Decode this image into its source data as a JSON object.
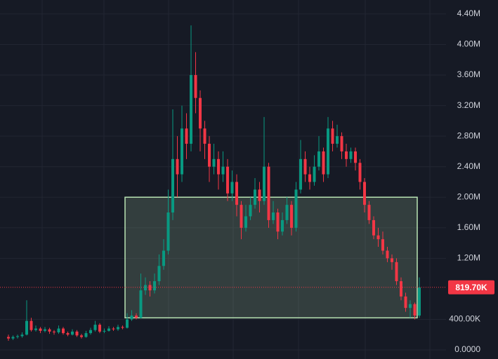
{
  "chart_data": {
    "type": "candlestick",
    "up_color": "#089981",
    "down_color": "#f23645",
    "ylim": [
      -119000,
      4583000
    ],
    "yticks": [
      {
        "value": 0,
        "label": "0.0000"
      },
      {
        "value": 400000,
        "label": "400.00K"
      },
      {
        "value": 1200000,
        "label": "1.20M"
      },
      {
        "value": 1600000,
        "label": "1.60M"
      },
      {
        "value": 2000000,
        "label": "2.00M"
      },
      {
        "value": 2400000,
        "label": "2.40M"
      },
      {
        "value": 2800000,
        "label": "2.80M"
      },
      {
        "value": 3200000,
        "label": "3.20M"
      },
      {
        "value": 3600000,
        "label": "3.60M"
      },
      {
        "value": 4000000,
        "label": "4.00M"
      },
      {
        "value": 4400000,
        "label": "4.40M"
      }
    ],
    "grid": true,
    "last_price": {
      "value": 819700,
      "label": "819.70K",
      "color": "#f23645"
    },
    "zone": {
      "top": 2000000,
      "bottom": 420000,
      "color": "#b9e4b4"
    },
    "open": [
      170000,
      150000,
      170000,
      180000,
      200000,
      380000,
      260000,
      280000,
      250000,
      270000,
      240000,
      230000,
      280000,
      220000,
      200000,
      240000,
      190000,
      170000,
      220000,
      260000,
      330000,
      240000,
      250000,
      280000,
      270000,
      300000,
      290000,
      400000,
      450000,
      420000,
      780000,
      850000,
      780000,
      900000,
      1100000,
      1300000,
      1800000,
      2500000,
      2300000,
      2900000,
      2700000,
      3600000,
      3300000,
      2900000,
      2700000,
      2400000,
      2500000,
      2300000,
      2400000,
      2050000,
      2200000,
      1900000,
      1600000,
      1750000,
      1900000,
      2100000,
      1950000,
      2400000,
      1700000,
      1800000,
      1550000,
      1700000,
      1900000,
      1600000,
      2100000,
      2500000,
      2300000,
      2200000,
      2400000,
      2600000,
      2300000,
      2900000,
      2700000,
      2800000,
      2600000,
      2500000,
      2600000,
      2450000,
      2200000,
      1900000,
      1700000,
      1500000,
      1450000,
      1300000,
      1200000,
      1150000,
      900000,
      700000,
      550000,
      600000,
      450000
    ],
    "high": [
      200000,
      190000,
      200000,
      230000,
      650000,
      420000,
      320000,
      300000,
      300000,
      290000,
      260000,
      320000,
      300000,
      240000,
      270000,
      260000,
      210000,
      250000,
      290000,
      380000,
      350000,
      280000,
      310000,
      300000,
      330000,
      320000,
      480000,
      520000,
      480000,
      1000000,
      950000,
      900000,
      1000000,
      1250000,
      1450000,
      2100000,
      3150000,
      2800000,
      3200000,
      3100000,
      4250000,
      3900000,
      3400000,
      3000000,
      2800000,
      2700000,
      2600000,
      2600000,
      2500000,
      2350000,
      2300000,
      1950000,
      1900000,
      2000000,
      2250000,
      2200000,
      3050000,
      2450000,
      1950000,
      1850000,
      1800000,
      2000000,
      1950000,
      2200000,
      2750000,
      2600000,
      2400000,
      2550000,
      2800000,
      2650000,
      3050000,
      3000000,
      2950000,
      2850000,
      2700000,
      2650000,
      2650000,
      2500000,
      2250000,
      1950000,
      1750000,
      1600000,
      1550000,
      1350000,
      1250000,
      1200000,
      950000,
      750000,
      650000,
      620000,
      950000
    ],
    "low": [
      120000,
      130000,
      150000,
      160000,
      190000,
      240000,
      240000,
      220000,
      230000,
      210000,
      200000,
      210000,
      200000,
      180000,
      190000,
      170000,
      150000,
      160000,
      200000,
      240000,
      220000,
      220000,
      240000,
      250000,
      250000,
      270000,
      280000,
      380000,
      400000,
      410000,
      720000,
      700000,
      740000,
      850000,
      1050000,
      1250000,
      1700000,
      2000000,
      2200000,
      2500000,
      2600000,
      3100000,
      2600000,
      2500000,
      2200000,
      2300000,
      2100000,
      2200000,
      1950000,
      1950000,
      1750000,
      1450000,
      1550000,
      1700000,
      1850000,
      1800000,
      1900000,
      1600000,
      1650000,
      1450000,
      1500000,
      1650000,
      1500000,
      1550000,
      2050000,
      2200000,
      2100000,
      2150000,
      2350000,
      2200000,
      2250000,
      2600000,
      2650000,
      2500000,
      2400000,
      2450000,
      2350000,
      2100000,
      1800000,
      1650000,
      1450000,
      1350000,
      1250000,
      1150000,
      1050000,
      850000,
      650000,
      500000,
      420000,
      400000,
      420000
    ],
    "close": [
      150000,
      170000,
      180000,
      200000,
      380000,
      260000,
      280000,
      250000,
      270000,
      240000,
      230000,
      280000,
      220000,
      200000,
      240000,
      190000,
      170000,
      220000,
      260000,
      330000,
      240000,
      250000,
      280000,
      270000,
      300000,
      290000,
      400000,
      450000,
      420000,
      780000,
      850000,
      780000,
      900000,
      1100000,
      1300000,
      1800000,
      2500000,
      2300000,
      2900000,
      2700000,
      3600000,
      3300000,
      2900000,
      2700000,
      2400000,
      2500000,
      2300000,
      2400000,
      2050000,
      2200000,
      1900000,
      1600000,
      1750000,
      1900000,
      2100000,
      1950000,
      2400000,
      1700000,
      1800000,
      1550000,
      1700000,
      1900000,
      1600000,
      2100000,
      2500000,
      2300000,
      2200000,
      2400000,
      2600000,
      2300000,
      2900000,
      2700000,
      2800000,
      2600000,
      2500000,
      2600000,
      2450000,
      2200000,
      1900000,
      1700000,
      1500000,
      1450000,
      1300000,
      1200000,
      1150000,
      900000,
      700000,
      550000,
      600000,
      450000,
      820000
    ]
  }
}
